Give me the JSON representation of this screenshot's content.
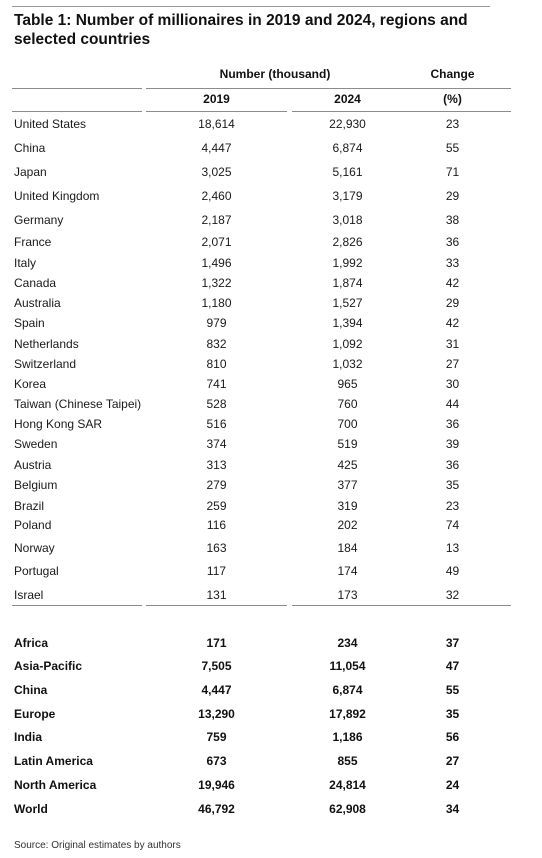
{
  "table": {
    "title": "Table 1: Number of millionaires in 2019 and 2024, regions and selected countries",
    "header": {
      "group_label": "Number (thousand)",
      "change_label": "Change",
      "year1": "2019",
      "year2": "2024",
      "change_unit": "(%)"
    },
    "rows": [
      {
        "name": "United States",
        "v2019": "18,614",
        "v2024": "22,930",
        "change": "23"
      },
      {
        "name": "China",
        "v2019": "4,447",
        "v2024": "6,874",
        "change": "55"
      },
      {
        "name": "Japan",
        "v2019": "3,025",
        "v2024": "5,161",
        "change": "71"
      },
      {
        "name": "United Kingdom",
        "v2019": "2,460",
        "v2024": "3,179",
        "change": "29"
      },
      {
        "name": "Germany",
        "v2019": "2,187",
        "v2024": "3,018",
        "change": "38"
      },
      {
        "name": "France",
        "v2019": "2,071",
        "v2024": "2,826",
        "change": "36"
      },
      {
        "name": "Italy",
        "v2019": "1,496",
        "v2024": "1,992",
        "change": "33"
      },
      {
        "name": "Canada",
        "v2019": "1,322",
        "v2024": "1,874",
        "change": "42"
      },
      {
        "name": "Australia",
        "v2019": "1,180",
        "v2024": "1,527",
        "change": "29"
      },
      {
        "name": "Spain",
        "v2019": "979",
        "v2024": "1,394",
        "change": "42"
      },
      {
        "name": "Netherlands",
        "v2019": "832",
        "v2024": "1,092",
        "change": "31"
      },
      {
        "name": "Switzerland",
        "v2019": "810",
        "v2024": "1,032",
        "change": "27"
      },
      {
        "name": "Korea",
        "v2019": "741",
        "v2024": "965",
        "change": "30"
      },
      {
        "name": "Taiwan (Chinese Taipei)",
        "v2019": "528",
        "v2024": "760",
        "change": "44"
      },
      {
        "name": "Hong Kong SAR",
        "v2019": "516",
        "v2024": "700",
        "change": "36"
      },
      {
        "name": "Sweden",
        "v2019": "374",
        "v2024": "519",
        "change": "39"
      },
      {
        "name": "Austria",
        "v2019": "313",
        "v2024": "425",
        "change": "36"
      },
      {
        "name": "Belgium",
        "v2019": "279",
        "v2024": "377",
        "change": "35"
      },
      {
        "name": "Brazil",
        "v2019": "259",
        "v2024": "319",
        "change": "23"
      },
      {
        "name": "Poland",
        "v2019": "116",
        "v2024": "202",
        "change": "74"
      },
      {
        "name": "Norway",
        "v2019": "163",
        "v2024": "184",
        "change": "13"
      },
      {
        "name": "Portugal",
        "v2019": "117",
        "v2024": "174",
        "change": "49"
      },
      {
        "name": "Israel",
        "v2019": "131",
        "v2024": "173",
        "change": "32"
      }
    ],
    "region_rows": [
      {
        "name": "Africa",
        "v2019": "171",
        "v2024": "234",
        "change": "37"
      },
      {
        "name": "Asia-Pacific",
        "v2019": "7,505",
        "v2024": "11,054",
        "change": "47"
      },
      {
        "name": "China",
        "v2019": "4,447",
        "v2024": "6,874",
        "change": "55"
      },
      {
        "name": "Europe",
        "v2019": "13,290",
        "v2024": "17,892",
        "change": "35"
      },
      {
        "name": "India",
        "v2019": "759",
        "v2024": "1,186",
        "change": "56"
      },
      {
        "name": "Latin America",
        "v2019": "673",
        "v2024": "855",
        "change": "27"
      },
      {
        "name": "North America",
        "v2019": "19,946",
        "v2024": "24,814",
        "change": "24"
      },
      {
        "name": "World",
        "v2019": "46,792",
        "v2024": "62,908",
        "change": "34"
      }
    ],
    "source": "Source: Original estimates by authors"
  }
}
